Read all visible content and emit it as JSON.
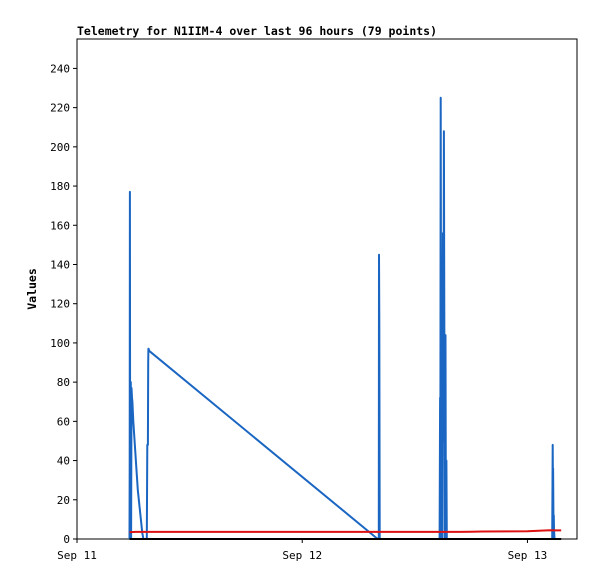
{
  "chart_data": {
    "type": "line",
    "title": "Telemetry for N1IIM-4 over last 96 hours (79 points)",
    "xlabel": "",
    "ylabel": "Values",
    "x_axis": {
      "unit": "days",
      "range": [
        11.0,
        13.22
      ],
      "ticks": [
        {
          "value": 11.0,
          "label": "Sep 11"
        },
        {
          "value": 12.0,
          "label": "Sep 12"
        },
        {
          "value": 13.0,
          "label": "Sep 13"
        }
      ]
    },
    "ylim": [
      0,
      255
    ],
    "y_ticks": [
      0,
      20,
      40,
      60,
      80,
      100,
      120,
      140,
      160,
      180,
      200,
      220,
      240
    ],
    "grid": false,
    "series": [
      {
        "color": "#1a66c2",
        "x": [
          11.233,
          11.234,
          11.235,
          11.236,
          11.238,
          11.239,
          11.24,
          11.242,
          11.244,
          11.246,
          11.25,
          11.27,
          11.29,
          11.295,
          11.31,
          11.312,
          11.315,
          11.316,
          11.317,
          11.318,
          11.32,
          12.335,
          12.34,
          12.341,
          12.342,
          12.344,
          12.346,
          12.35,
          12.61,
          12.612,
          12.613,
          12.615,
          12.617,
          12.618,
          12.62,
          12.622,
          12.625,
          12.627,
          12.629,
          12.633,
          12.636,
          12.638,
          12.64,
          12.642,
          12.645,
          13.11,
          13.112,
          13.113,
          13.114,
          13.116,
          13.117,
          13.118,
          13.12
        ],
        "y": [
          0,
          40,
          177,
          0,
          40,
          80,
          0,
          77,
          72,
          70,
          60,
          25,
          3,
          0,
          0,
          48,
          48,
          90,
          97,
          97,
          96,
          0,
          0,
          145,
          112,
          0,
          0,
          0,
          0,
          72,
          0,
          225,
          48,
          0,
          46,
          0,
          156,
          50,
          208,
          0,
          104,
          0,
          40,
          0,
          0,
          0,
          48,
          30,
          36,
          0,
          12,
          5,
          0
        ]
      },
      {
        "color": "#dd1111",
        "x": [
          11.233,
          11.24,
          11.26,
          11.3,
          12.0,
          12.5,
          12.7,
          12.75,
          12.8,
          13.0,
          13.05,
          13.1,
          13.12,
          13.15
        ],
        "y": [
          3.5,
          3.5,
          3.6,
          3.6,
          3.6,
          3.6,
          3.6,
          3.7,
          3.8,
          4.0,
          4.2,
          4.5,
          4.4,
          4.4
        ]
      },
      {
        "color": "#000000",
        "x": [
          11.233,
          13.15
        ],
        "y": [
          0,
          0
        ]
      }
    ]
  }
}
